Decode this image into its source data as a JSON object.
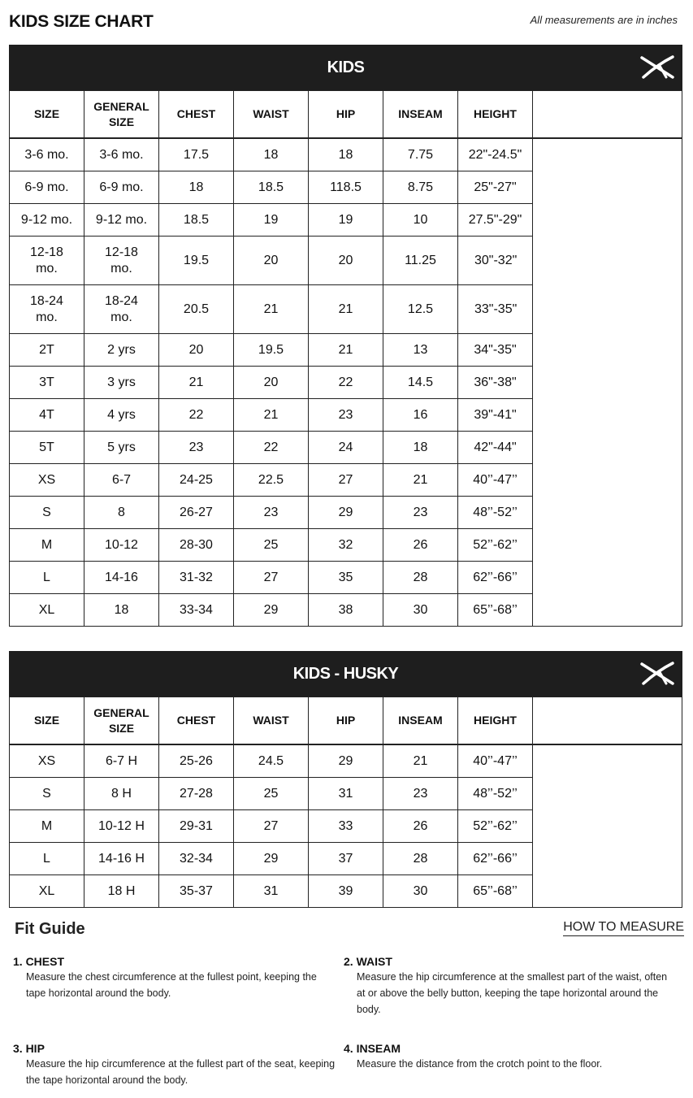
{
  "title": "KIDS SIZE CHART",
  "note": "All measurements are in inches",
  "headers": [
    "SIZE",
    "GENERAL SIZE",
    "CHEST",
    "WAIST",
    "HIP",
    "INSEAM",
    "HEIGHT"
  ],
  "tables": [
    {
      "name": "KIDS",
      "logo": "brand-x-logo-icon",
      "rows": [
        [
          "3-6 mo.",
          "3-6 mo.",
          "17.5",
          "18",
          "18",
          "7.75",
          "22\"-24.5\""
        ],
        [
          "6-9 mo.",
          "6-9 mo.",
          "18",
          "18.5",
          "118.5",
          "8.75",
          "25\"-27\""
        ],
        [
          "9-12 mo.",
          "9-12 mo.",
          "18.5",
          "19",
          "19",
          "10",
          "27.5\"-29\""
        ],
        [
          "12-18 mo.",
          "12-18 mo.",
          "19.5",
          "20",
          "20",
          "11.25",
          "30\"-32\""
        ],
        [
          "18-24 mo.",
          "18-24 mo.",
          "20.5",
          "21",
          "21",
          "12.5",
          "33\"-35\""
        ],
        [
          "2T",
          "2 yrs",
          "20",
          "19.5",
          "21",
          "13",
          "34\"-35\""
        ],
        [
          "3T",
          "3 yrs",
          "21",
          "20",
          "22",
          "14.5",
          "36\"-38\""
        ],
        [
          "4T",
          "4 yrs",
          "22",
          "21",
          "23",
          "16",
          "39\"-41\""
        ],
        [
          "5T",
          "5 yrs",
          "23",
          "22",
          "24",
          "18",
          "42\"-44\""
        ],
        [
          "XS",
          "6-7",
          "24-25",
          "22.5",
          "27",
          "21",
          "40’’-47’’"
        ],
        [
          "S",
          "8",
          "26-27",
          "23",
          "29",
          "23",
          "48’’-52’’"
        ],
        [
          "M",
          "10-12",
          "28-30",
          "25",
          "32",
          "26",
          "52’’-62’’"
        ],
        [
          "L",
          "14-16",
          "31-32",
          "27",
          "35",
          "28",
          "62’’-66’’"
        ],
        [
          "XL",
          "18",
          "33-34",
          "29",
          "38",
          "30",
          "65’’-68’’"
        ]
      ]
    },
    {
      "name": "KIDS - HUSKY",
      "logo": "brand-x-logo-icon",
      "rows": [
        [
          "XS",
          "6-7 H",
          "25-26",
          "24.5",
          "29",
          "21",
          "40’’-47’’"
        ],
        [
          "S",
          "8 H",
          "27-28",
          "25",
          "31",
          "23",
          "48’’-52’’"
        ],
        [
          "M",
          "10-12 H",
          "29-31",
          "27",
          "33",
          "26",
          "52’’-62’’"
        ],
        [
          "L",
          "14-16 H",
          "32-34",
          "29",
          "37",
          "28",
          "62’’-66’’"
        ],
        [
          "XL",
          "18 H",
          "35-37",
          "31",
          "39",
          "30",
          "65’’-68’’"
        ]
      ]
    }
  ],
  "fit_guide": {
    "title": "Fit Guide",
    "how_to_measure": "HOW TO MEASURE",
    "items": [
      {
        "heading": "1. CHEST",
        "text": "Measure the chest circumference at the fullest point, keeping the tape horizontal around the body."
      },
      {
        "heading": "2. WAIST",
        "text": "Measure the hip circumference at the smallest part of the waist, often at or above the belly button, keeping the tape horizontal around the body."
      },
      {
        "heading": "3. HIP",
        "text": "Measure the hip circumference at the fullest part of the seat, keeping the tape horizontal around the body."
      },
      {
        "heading": "4. INSEAM",
        "text": "Measure the distance from the crotch point to the floor."
      }
    ]
  }
}
